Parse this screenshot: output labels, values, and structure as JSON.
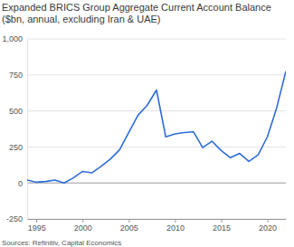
{
  "chart_data": {
    "type": "line",
    "title": "Expanded BRICS Group Aggregate Current Account Balance ($bn, annual, excluding Iran & UAE)",
    "source": "Sources: Refinitiv, Capital Economics",
    "x": [
      1994,
      1995,
      1996,
      1997,
      1998,
      1999,
      2000,
      2001,
      2002,
      2003,
      2004,
      2005,
      2006,
      2007,
      2008,
      2009,
      2010,
      2011,
      2012,
      2013,
      2014,
      2015,
      2016,
      2017,
      2018,
      2019,
      2020,
      2021,
      2022
    ],
    "values": [
      20,
      5,
      10,
      20,
      0,
      35,
      80,
      70,
      115,
      165,
      230,
      350,
      470,
      540,
      645,
      320,
      340,
      350,
      355,
      245,
      290,
      225,
      175,
      205,
      150,
      195,
      320,
      520,
      775
    ],
    "color": "#2e6dd6",
    "xlim": [
      1994,
      2022
    ],
    "xticks": [
      1995,
      2000,
      2005,
      2010,
      2015,
      2020
    ],
    "ylim": [
      -250,
      1000
    ],
    "yticks": [
      -250,
      0,
      250,
      500,
      750,
      {
        "value": 1000,
        "label": "1,000"
      }
    ],
    "grid": true
  }
}
